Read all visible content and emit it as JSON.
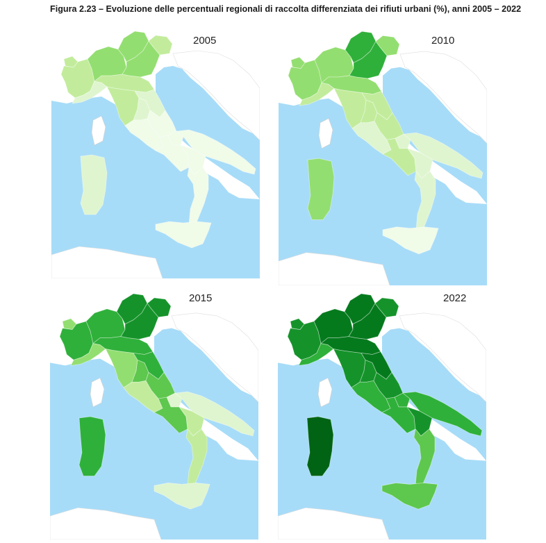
{
  "figure": {
    "title": "Figura 2.23 – Evoluzione delle percentuali regionali di raccolta differenziata dei rifiuti urbani (%), anni 2005 – 2022"
  },
  "colors": {
    "sea": "#a7dcf8",
    "land_bg": "#ffffff",
    "border_lines": "#dddddd",
    "corsica": "#ffffff",
    "scale": [
      "#f0fbe8",
      "#dff5cf",
      "#c2ec9c",
      "#93de70",
      "#5ec74e",
      "#2fb03a",
      "#15932a",
      "#057a1d",
      "#006414"
    ]
  },
  "maps": [
    {
      "year": "2005",
      "regions": {
        "valle_aosta": 2,
        "piemonte": 2,
        "lombardia": 3,
        "trentino": 3,
        "veneto": 3,
        "friuli": 2,
        "liguria": 1,
        "emilia": 2,
        "toscana": 2,
        "umbria": 1,
        "marche": 1,
        "lazio": 0,
        "abruzzo": 0,
        "molise": 0,
        "campania": 0,
        "puglia": 0,
        "basilicata": 0,
        "calabria": 0,
        "sicilia": 0,
        "sardegna": 1
      }
    },
    {
      "year": "2010",
      "regions": {
        "valle_aosta": 3,
        "piemonte": 3,
        "lombardia": 3,
        "trentino": 5,
        "veneto": 5,
        "friuli": 3,
        "liguria": 2,
        "emilia": 3,
        "toscana": 2,
        "umbria": 2,
        "marche": 2,
        "lazio": 1,
        "abruzzo": 2,
        "molise": 1,
        "campania": 2,
        "puglia": 1,
        "basilicata": 1,
        "calabria": 1,
        "sicilia": 0,
        "sardegna": 3
      }
    },
    {
      "year": "2015",
      "regions": {
        "valle_aosta": 3,
        "piemonte": 5,
        "lombardia": 5,
        "trentino": 6,
        "veneto": 6,
        "friuli": 6,
        "liguria": 3,
        "emilia": 5,
        "toscana": 3,
        "umbria": 4,
        "marche": 5,
        "lazio": 2,
        "abruzzo": 4,
        "molise": 1,
        "campania": 4,
        "puglia": 1,
        "basilicata": 2,
        "calabria": 2,
        "sicilia": 1,
        "sardegna": 5
      }
    },
    {
      "year": "2022",
      "regions": {
        "valle_aosta": 6,
        "piemonte": 6,
        "lombardia": 7,
        "trentino": 7,
        "veneto": 7,
        "friuli": 6,
        "liguria": 5,
        "emilia": 7,
        "toscana": 6,
        "umbria": 6,
        "marche": 7,
        "lazio": 5,
        "abruzzo": 6,
        "molise": 5,
        "campania": 5,
        "puglia": 5,
        "basilicata": 6,
        "calabria": 4,
        "sicilia": 4,
        "sardegna": 8
      }
    }
  ]
}
